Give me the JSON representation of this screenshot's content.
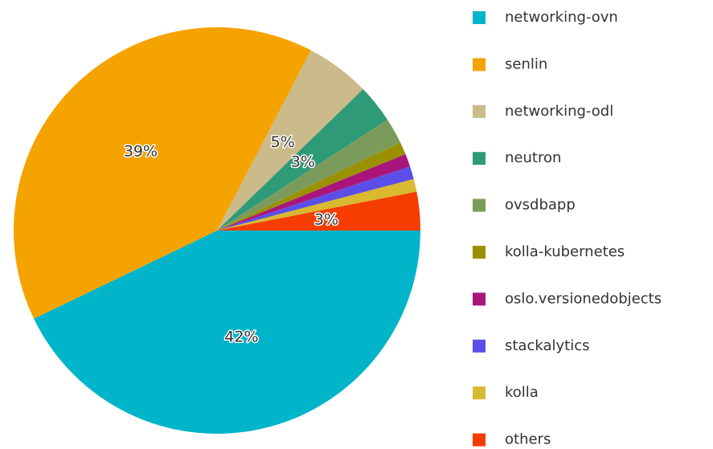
{
  "chart_data": {
    "type": "pie",
    "categories": [
      "networking-ovn",
      "senlin",
      "networking-odl",
      "neutron",
      "ovsdbapp",
      "kolla-kubernetes",
      "oslo.versionedobjects",
      "stackalytics",
      "kolla",
      "others"
    ],
    "values": [
      42,
      39,
      5,
      3,
      2,
      1,
      1,
      1,
      1,
      3
    ],
    "value_labels": [
      "42%",
      "39%",
      "5%",
      "3%",
      null,
      null,
      null,
      null,
      null,
      "3%"
    ],
    "colors": [
      "#00b5c9",
      "#f5a300",
      "#cbbb8b",
      "#2f9a78",
      "#7b9b5b",
      "#9a9000",
      "#a9157b",
      "#5b4ee8",
      "#d9b930",
      "#f53d00"
    ],
    "legend": "right"
  }
}
